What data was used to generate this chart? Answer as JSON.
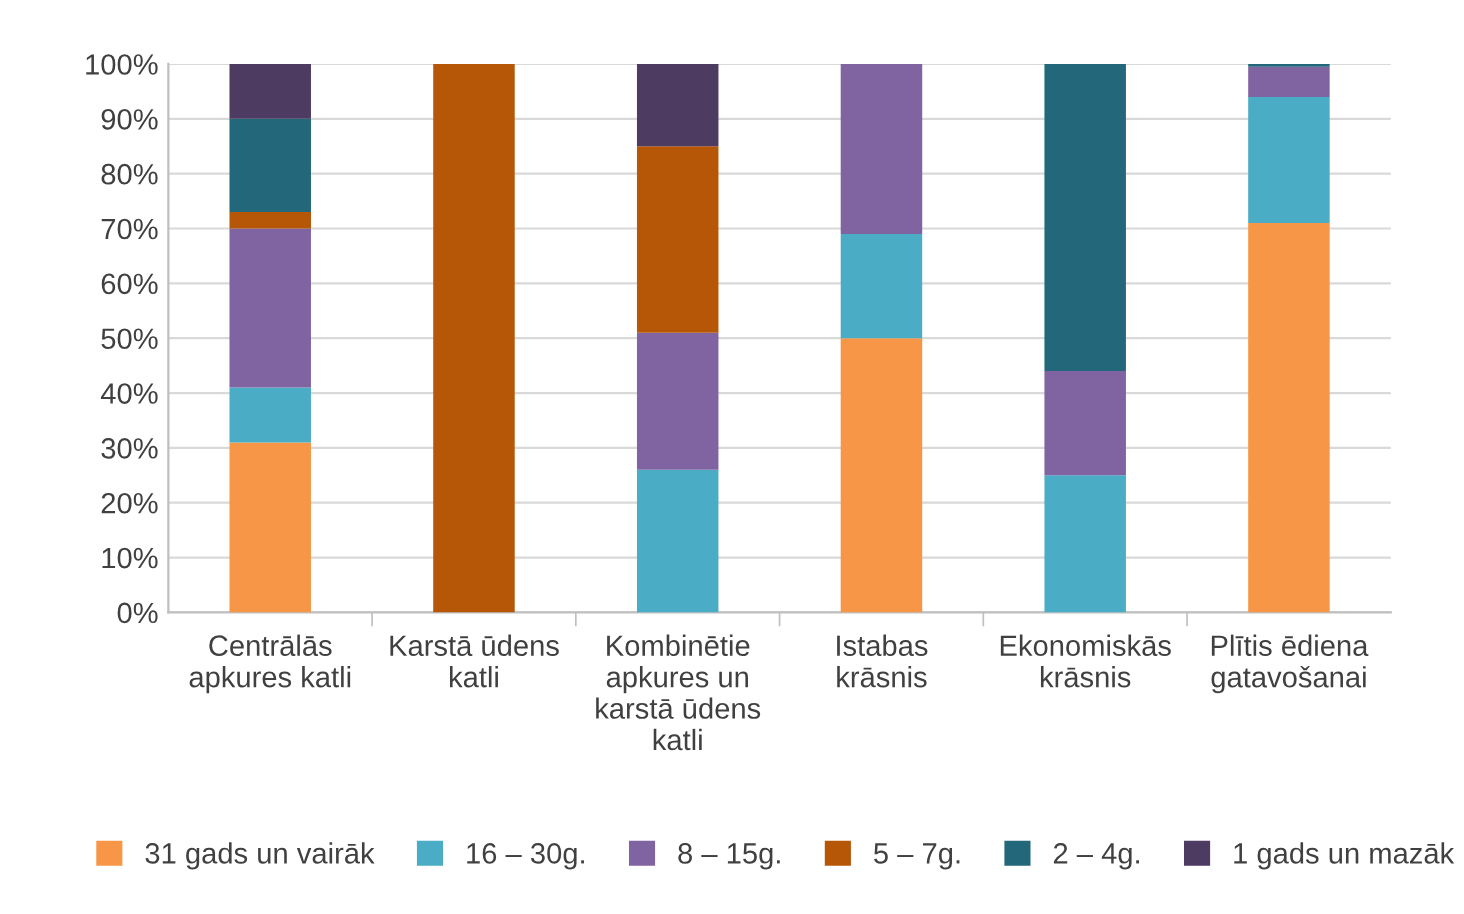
{
  "chart_data": {
    "type": "bar",
    "stacked": true,
    "categories": [
      "Centrālās\napkures katli",
      "Karstā ūdens\nkatli",
      "Kombinētie\napkures un\nkarstā ūdens\nkatli",
      "Istabas\nkrāsnis",
      "Ekonomiskās\nkrāsnis",
      "Plītis ēdiena\ngatavošanai"
    ],
    "series": [
      {
        "name": "31 gads un vairāk",
        "color": "#f79646",
        "values": [
          31,
          0,
          0,
          50,
          0,
          71
        ]
      },
      {
        "name": "16 – 30g.",
        "color": "#4bacc6",
        "values": [
          10,
          0,
          26,
          19,
          25,
          23
        ]
      },
      {
        "name": "8 – 15g.",
        "color": "#8064a2",
        "values": [
          29,
          0,
          25,
          31,
          19,
          5.5
        ]
      },
      {
        "name": "5 – 7g.",
        "color": "#b65708",
        "values": [
          3,
          100,
          34,
          0,
          0,
          0
        ]
      },
      {
        "name": "2 – 4g.",
        "color": "#23687a",
        "values": [
          17,
          0,
          0,
          0,
          56,
          0.5
        ]
      },
      {
        "name": "1 gads un mazāk",
        "color": "#4e3b62",
        "values": [
          10,
          0,
          15,
          0,
          0,
          0
        ]
      }
    ],
    "ylim": [
      0,
      100
    ],
    "yticks": [
      {
        "value": 0,
        "label": "0%"
      },
      {
        "value": 10,
        "label": "10%"
      },
      {
        "value": 20,
        "label": "20%"
      },
      {
        "value": 30,
        "label": "30%"
      },
      {
        "value": 40,
        "label": "40%"
      },
      {
        "value": 50,
        "label": "50%"
      },
      {
        "value": 60,
        "label": "60%"
      },
      {
        "value": 70,
        "label": "70%"
      },
      {
        "value": 80,
        "label": "80%"
      },
      {
        "value": 90,
        "label": "90%"
      },
      {
        "value": 100,
        "label": "100%"
      }
    ],
    "grid": "y",
    "legend": "bottom"
  }
}
